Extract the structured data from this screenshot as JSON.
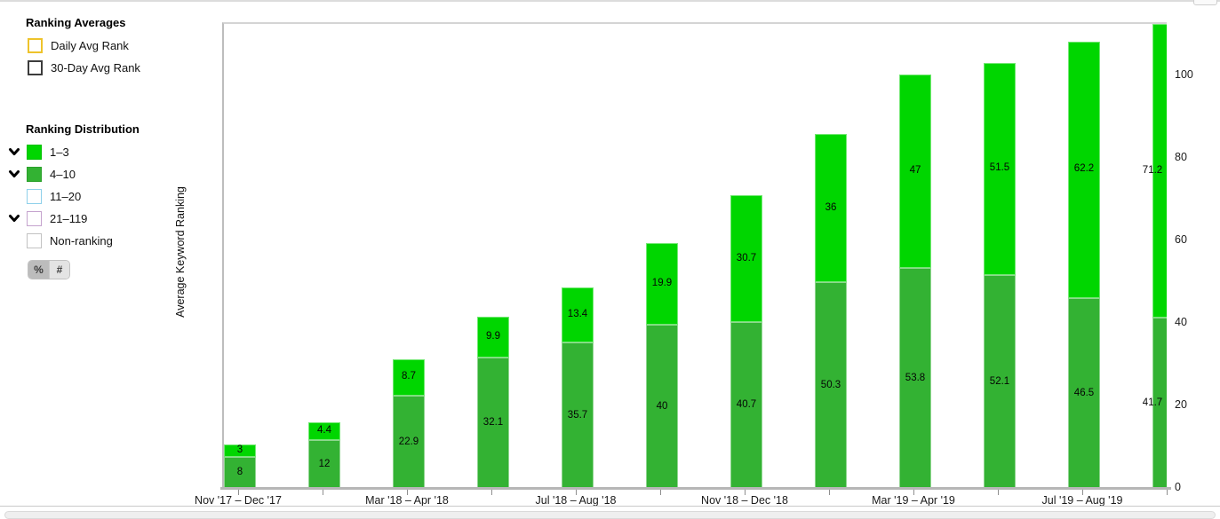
{
  "legend": {
    "ranking_averages": {
      "title": "Ranking Averages",
      "items": [
        {
          "label": "Daily Avg Rank",
          "box_border": "#eec32b",
          "box_fill": "#ffffff"
        },
        {
          "label": "30-Day Avg Rank",
          "box_border": "#3c3c3c",
          "box_fill": "#ffffff"
        }
      ]
    },
    "ranking_distribution": {
      "title": "Ranking Distribution",
      "items": [
        {
          "label": "1–3",
          "fill": "#00d600",
          "border": "#00c000",
          "expander": true
        },
        {
          "label": "4–10",
          "fill": "#33b233",
          "border": "#2aa02a",
          "expander": true
        },
        {
          "label": "11–20",
          "fill": "#ffffff",
          "border": "#8ed0ea",
          "expander": false
        },
        {
          "label": "21–119",
          "fill": "#ffffff",
          "border": "#c5a3ce",
          "expander": true
        },
        {
          "label": "Non-ranking",
          "fill": "#ffffff",
          "border": "#c2c2c2",
          "expander": false
        }
      ]
    },
    "unit_toggle": {
      "options": [
        {
          "label": "%",
          "selected": true
        },
        {
          "label": "#",
          "selected": false
        }
      ]
    }
  },
  "chart_data": {
    "type": "bar",
    "stacked": true,
    "ylabel": "Average Keyword Ranking",
    "y_axis_side": "right",
    "grid": false,
    "y_ticks": [
      0,
      20,
      40,
      60,
      80,
      100
    ],
    "ylim": [
      0,
      113
    ],
    "x_tick_labels": [
      "Nov '17 – Dec '17",
      "Mar '18 – Apr '18",
      "Jul '18 – Aug '18",
      "Nov '18 – Dec '18",
      "Mar '19 – Apr '19",
      "Jul '19 – Aug '19"
    ],
    "x_tick_label_bar_indices": [
      0,
      2,
      4,
      6,
      8,
      10
    ],
    "series": [
      {
        "name": "4–10",
        "color": "#33b233",
        "values": [
          8,
          12,
          22.9,
          32.1,
          35.7,
          40,
          40.7,
          50.3,
          53.8,
          52.1,
          46.5,
          41.7
        ]
      },
      {
        "name": "1–3",
        "color": "#00d600",
        "values": [
          3,
          4.4,
          8.7,
          9.9,
          13.4,
          19.9,
          30.7,
          36,
          47,
          51.5,
          62.2,
          71.2
        ]
      }
    ],
    "last_bar_clipped": true
  }
}
